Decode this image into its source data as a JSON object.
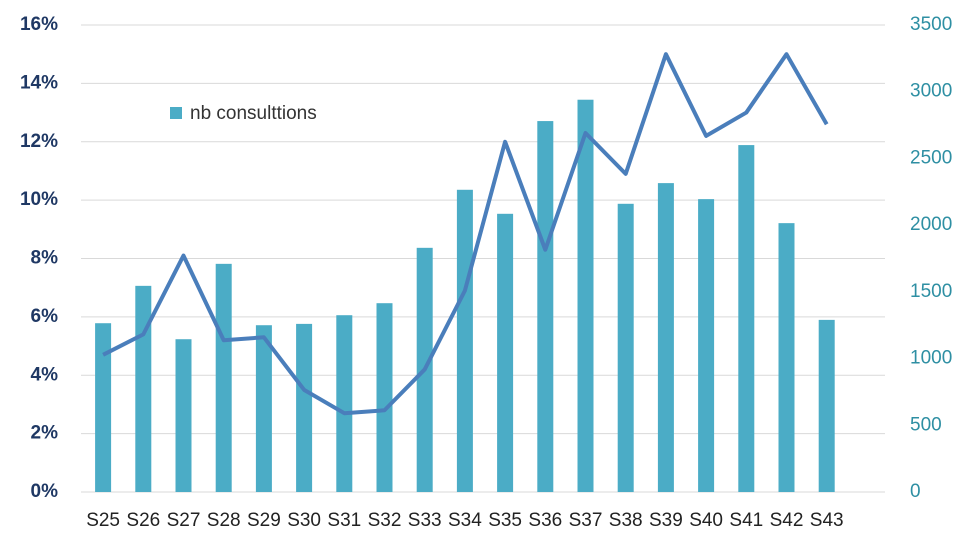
{
  "chart_data": {
    "type": "bar",
    "categories": [
      "S25",
      "S26",
      "S27",
      "S28",
      "S29",
      "S30",
      "S31",
      "S32",
      "S33",
      "S34",
      "S35",
      "S36",
      "S37",
      "S38",
      "S39",
      "S40",
      "S41",
      "S42",
      "S43"
    ],
    "series": [
      {
        "name": "nb consulttions",
        "type": "bar",
        "axis": "y2",
        "color": "#4bacc6",
        "values": [
          1265,
          1545,
          1145,
          1710,
          1250,
          1260,
          1325,
          1415,
          1830,
          2265,
          2085,
          2780,
          2940,
          2160,
          2315,
          2195,
          2600,
          2015,
          1290
        ]
      },
      {
        "type": "line",
        "axis": "y",
        "color": "#4a7ebb",
        "values": [
          4.7,
          5.4,
          8.1,
          5.2,
          5.3,
          3.5,
          2.7,
          2.8,
          4.2,
          6.9,
          12.0,
          8.3,
          12.3,
          10.9,
          15.0,
          12.2,
          13.0,
          15.0,
          12.6
        ]
      }
    ],
    "ylim": [
      0,
      16
    ],
    "yticks": [
      {
        "value": 0,
        "label": "0%"
      },
      {
        "value": 2,
        "label": "2%"
      },
      {
        "value": 4,
        "label": "4%"
      },
      {
        "value": 6,
        "label": "6%"
      },
      {
        "value": 8,
        "label": "8%"
      },
      {
        "value": 10,
        "label": "10%"
      },
      {
        "value": 12,
        "label": "12%"
      },
      {
        "value": 14,
        "label": "14%"
      },
      {
        "value": 16,
        "label": "16%"
      }
    ],
    "y2lim": [
      0,
      3500
    ],
    "y2ticks": [
      0,
      500,
      1000,
      1500,
      2000,
      2500,
      3000,
      3500
    ],
    "grid": true,
    "legend": "top-left"
  }
}
